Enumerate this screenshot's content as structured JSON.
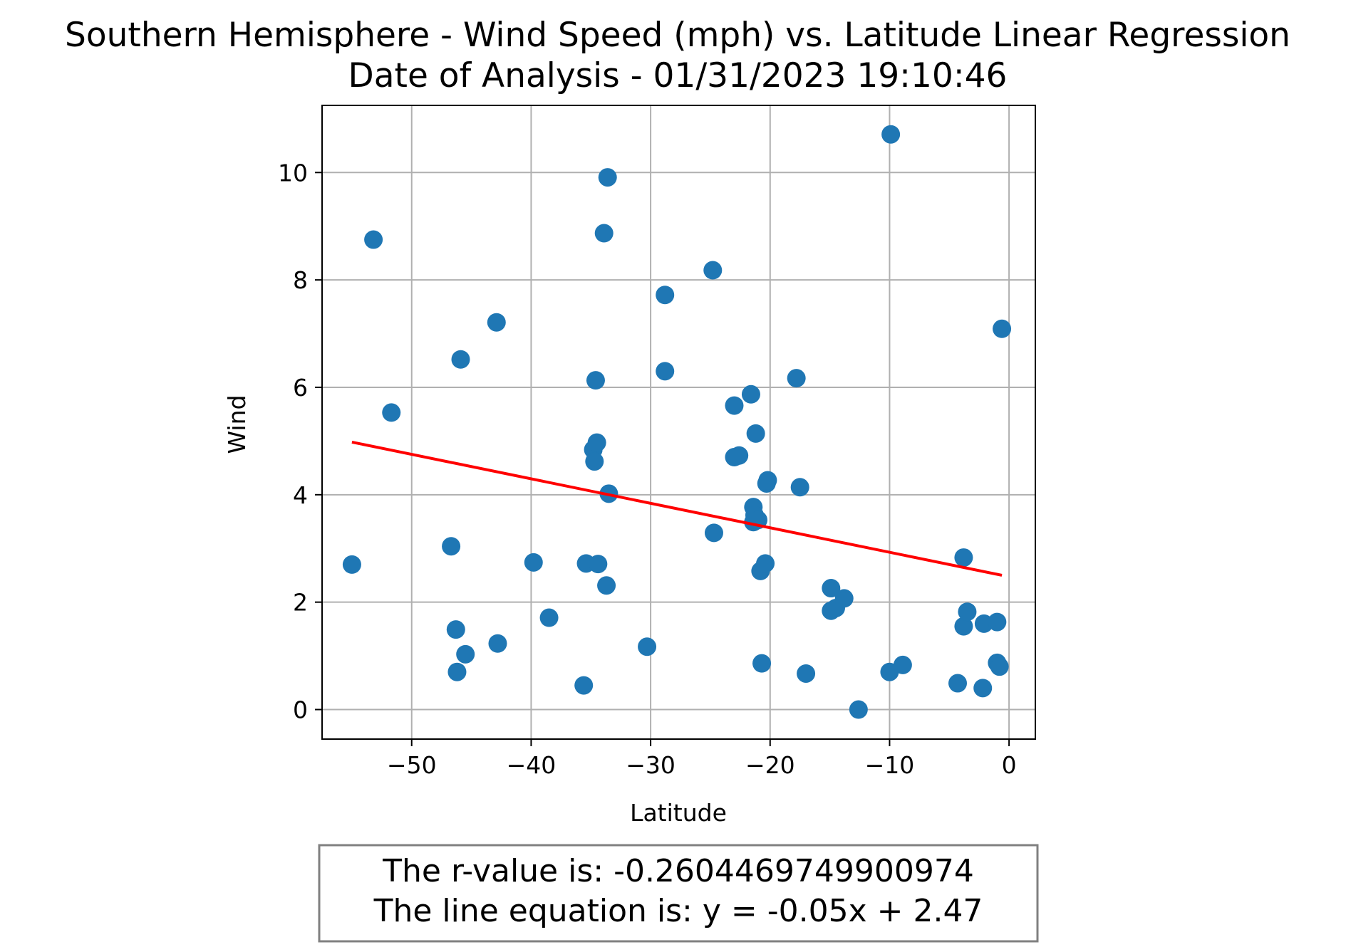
{
  "chart_data": {
    "type": "scatter",
    "title": "Southern Hemisphere - Wind Speed (mph) vs. Latitude Linear Regression",
    "subtitle": "Date of Analysis - 01/31/2023 19:10:46",
    "xlabel": "Latitude",
    "ylabel": "Wind",
    "xlim": [
      -57.5,
      2.2
    ],
    "ylim": [
      -0.55,
      11.25
    ],
    "xticks": [
      -50,
      -40,
      -30,
      -20,
      -10,
      0
    ],
    "yticks": [
      0,
      2,
      4,
      6,
      8,
      10
    ],
    "xtick_labels": [
      "−50",
      "−40",
      "−30",
      "−20",
      "−10",
      "0"
    ],
    "ytick_labels": [
      "0",
      "2",
      "4",
      "6",
      "8",
      "10"
    ],
    "grid": true,
    "colors": {
      "points": "#1f77b4",
      "regression": "#ff0000",
      "grid": "#b0b0b0",
      "axes": "#000000",
      "box_border": "#808080"
    },
    "series": [
      {
        "points": [
          [
            -55.0,
            2.7
          ],
          [
            -53.2,
            8.75
          ],
          [
            -51.7,
            5.53
          ],
          [
            -46.7,
            3.04
          ],
          [
            -46.3,
            1.49
          ],
          [
            -46.2,
            0.7
          ],
          [
            -45.9,
            6.52
          ],
          [
            -45.5,
            1.03
          ],
          [
            -42.9,
            7.21
          ],
          [
            -42.8,
            1.23
          ],
          [
            -39.8,
            2.74
          ],
          [
            -38.5,
            1.71
          ],
          [
            -35.6,
            0.45
          ],
          [
            -35.4,
            2.72
          ],
          [
            -34.8,
            4.84
          ],
          [
            -34.7,
            4.62
          ],
          [
            -34.6,
            6.13
          ],
          [
            -34.5,
            4.97
          ],
          [
            -34.4,
            2.71
          ],
          [
            -33.9,
            8.87
          ],
          [
            -33.7,
            2.31
          ],
          [
            -33.6,
            9.91
          ],
          [
            -33.5,
            4.02
          ],
          [
            -30.3,
            1.17
          ],
          [
            -28.8,
            7.72
          ],
          [
            -28.8,
            6.3
          ],
          [
            -24.8,
            8.18
          ],
          [
            -24.7,
            3.29
          ],
          [
            -23.0,
            5.66
          ],
          [
            -23.0,
            4.7
          ],
          [
            -22.6,
            4.73
          ],
          [
            -21.6,
            5.87
          ],
          [
            -21.4,
            3.77
          ],
          [
            -21.4,
            3.49
          ],
          [
            -21.3,
            3.62
          ],
          [
            -21.2,
            5.14
          ],
          [
            -21.0,
            3.53
          ],
          [
            -20.8,
            2.58
          ],
          [
            -20.7,
            0.86
          ],
          [
            -20.4,
            2.72
          ],
          [
            -20.3,
            4.21
          ],
          [
            -20.2,
            4.27
          ],
          [
            -17.8,
            6.17
          ],
          [
            -17.5,
            4.14
          ],
          [
            -17.0,
            0.67
          ],
          [
            -14.9,
            2.26
          ],
          [
            -14.9,
            1.84
          ],
          [
            -14.5,
            1.89
          ],
          [
            -13.8,
            2.07
          ],
          [
            -12.6,
            0.0
          ],
          [
            -10.0,
            0.7
          ],
          [
            -9.9,
            10.71
          ],
          [
            -8.9,
            0.83
          ],
          [
            -4.3,
            0.49
          ],
          [
            -3.8,
            2.83
          ],
          [
            -3.8,
            1.55
          ],
          [
            -3.5,
            1.82
          ],
          [
            -2.2,
            0.4
          ],
          [
            -2.1,
            1.6
          ],
          [
            -1.0,
            1.63
          ],
          [
            -1.0,
            0.87
          ],
          [
            -0.8,
            0.8
          ],
          [
            -0.6,
            7.09
          ]
        ]
      },
      {
        "type": "line",
        "slope": -0.05,
        "intercept": 2.47,
        "x": [
          -55.0,
          -0.6
        ],
        "y": [
          4.98,
          2.5
        ]
      }
    ],
    "annotation": {
      "lines": [
        "The r-value is: -0.2604469749900974",
        "The line equation is: y = -0.05x + 2.47"
      ]
    }
  }
}
